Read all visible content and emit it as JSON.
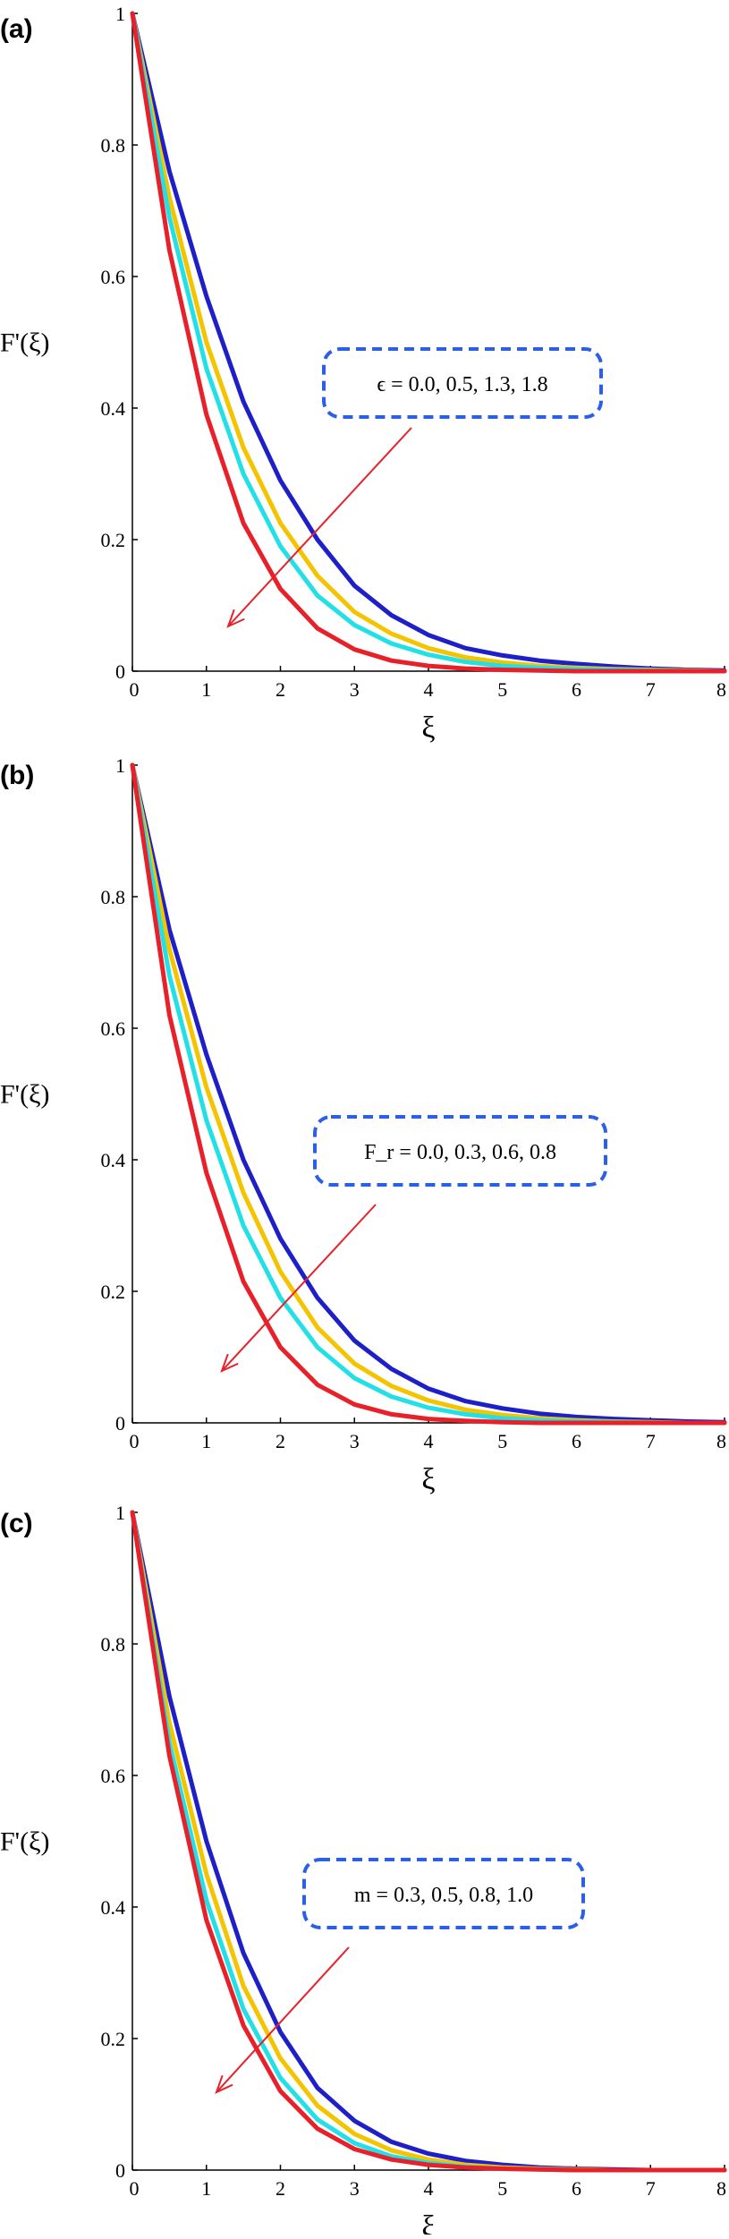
{
  "chart_data": [
    {
      "panel": "(a)",
      "type": "line",
      "xlabel": "ξ",
      "ylabel": "F'(ξ)",
      "xlim": [
        0,
        8
      ],
      "ylim": [
        0,
        1
      ],
      "xticks": [
        "0",
        "1",
        "2",
        "3",
        "4",
        "5",
        "6",
        "7",
        "8"
      ],
      "yticks": [
        "0",
        "0.2",
        "0.4",
        "0.6",
        "0.8",
        "1"
      ],
      "annotation": {
        "text": "ϵ = 0.0, 0.5, 1.3, 1.8",
        "position": "middle-right",
        "arrow": "pointing down-left, from top curve toward bottom curve"
      },
      "series": [
        {
          "color": "#1f1fc8",
          "x": [
            0,
            0.5,
            1,
            1.5,
            2,
            2.5,
            3,
            3.5,
            4,
            4.5,
            5,
            5.5,
            6,
            6.5,
            7,
            7.5,
            8
          ],
          "values": [
            1,
            0.76,
            0.57,
            0.41,
            0.29,
            0.2,
            0.13,
            0.085,
            0.055,
            0.035,
            0.024,
            0.016,
            0.011,
            0.007,
            0.004,
            0.002,
            0.001
          ]
        },
        {
          "color": "#f5c400",
          "x": [
            0,
            0.5,
            1,
            1.5,
            2,
            2.5,
            3,
            3.5,
            4,
            4.5,
            5,
            5.5,
            6,
            6.5,
            7,
            7.5,
            8
          ],
          "values": [
            1,
            0.72,
            0.5,
            0.34,
            0.225,
            0.145,
            0.09,
            0.057,
            0.035,
            0.021,
            0.013,
            0.008,
            0.005,
            0.003,
            0.002,
            0.001,
            0.0
          ]
        },
        {
          "color": "#22e0e6",
          "x": [
            0,
            0.5,
            1,
            1.5,
            2,
            2.5,
            3,
            3.5,
            4,
            4.5,
            5,
            5.5,
            6,
            6.5,
            7,
            7.5,
            8
          ],
          "values": [
            1,
            0.69,
            0.46,
            0.3,
            0.19,
            0.115,
            0.07,
            0.042,
            0.025,
            0.014,
            0.008,
            0.005,
            0.003,
            0.002,
            0.001,
            0.0,
            0.0
          ]
        },
        {
          "color": "#e8202a",
          "x": [
            0,
            0.5,
            1,
            1.5,
            2,
            2.5,
            3,
            3.5,
            4,
            4.5,
            5,
            5.5,
            6,
            6.5,
            7,
            7.5,
            8
          ],
          "values": [
            1,
            0.64,
            0.39,
            0.225,
            0.125,
            0.065,
            0.033,
            0.016,
            0.008,
            0.004,
            0.002,
            0.001,
            0.0,
            0.0,
            0.0,
            0.0,
            0.0
          ]
        }
      ]
    },
    {
      "panel": "(b)",
      "type": "line",
      "xlabel": "ξ",
      "ylabel": "F'(ξ)",
      "xlim": [
        0,
        8
      ],
      "ylim": [
        0,
        1
      ],
      "xticks": [
        "0",
        "1",
        "2",
        "3",
        "4",
        "5",
        "6",
        "7",
        "8"
      ],
      "yticks": [
        "0",
        "0.2",
        "0.4",
        "0.6",
        "0.8",
        "1"
      ],
      "annotation": {
        "text": "F_r = 0.0, 0.3, 0.6, 0.8",
        "position": "middle-right",
        "arrow": "pointing down-left, from top curve toward bottom curve"
      },
      "series": [
        {
          "color": "#1f1fc8",
          "x": [
            0,
            0.5,
            1,
            1.5,
            2,
            2.5,
            3,
            3.5,
            4,
            4.5,
            5,
            5.5,
            6,
            6.5,
            7,
            7.5,
            8
          ],
          "values": [
            1,
            0.75,
            0.56,
            0.4,
            0.28,
            0.19,
            0.125,
            0.082,
            0.052,
            0.033,
            0.022,
            0.014,
            0.009,
            0.006,
            0.004,
            0.002,
            0.001
          ]
        },
        {
          "color": "#f5c400",
          "x": [
            0,
            0.5,
            1,
            1.5,
            2,
            2.5,
            3,
            3.5,
            4,
            4.5,
            5,
            5.5,
            6,
            6.5,
            7,
            7.5,
            8
          ],
          "values": [
            1,
            0.72,
            0.51,
            0.35,
            0.23,
            0.145,
            0.09,
            0.056,
            0.034,
            0.02,
            0.012,
            0.007,
            0.004,
            0.002,
            0.001,
            0.0,
            0.0
          ]
        },
        {
          "color": "#22e0e6",
          "x": [
            0,
            0.5,
            1,
            1.5,
            2,
            2.5,
            3,
            3.5,
            4,
            4.5,
            5,
            5.5,
            6,
            6.5,
            7,
            7.5,
            8
          ],
          "values": [
            1,
            0.68,
            0.46,
            0.3,
            0.19,
            0.115,
            0.068,
            0.04,
            0.023,
            0.013,
            0.007,
            0.004,
            0.002,
            0.001,
            0.0,
            0.0,
            0.0
          ]
        },
        {
          "color": "#e8202a",
          "x": [
            0,
            0.5,
            1,
            1.5,
            2,
            2.5,
            3,
            3.5,
            4,
            4.5,
            5,
            5.5,
            6,
            6.5,
            7,
            7.5,
            8
          ],
          "values": [
            1,
            0.62,
            0.38,
            0.215,
            0.115,
            0.058,
            0.028,
            0.013,
            0.006,
            0.003,
            0.001,
            0.0,
            0.0,
            0.0,
            0.0,
            0.0,
            0.0
          ]
        }
      ]
    },
    {
      "panel": "(c)",
      "type": "line",
      "xlabel": "ξ",
      "ylabel": "F'(ξ)",
      "xlim": [
        0,
        8
      ],
      "ylim": [
        0,
        1
      ],
      "xticks": [
        "0",
        "1",
        "2",
        "3",
        "4",
        "5",
        "6",
        "7",
        "8"
      ],
      "yticks": [
        "0",
        "0.2",
        "0.4",
        "0.6",
        "0.8",
        "1"
      ],
      "annotation": {
        "text": "m = 0.3, 0.5, 0.8, 1.0",
        "position": "middle-right",
        "arrow": "pointing down-left, from top curve toward bottom curve"
      },
      "series": [
        {
          "color": "#1f1fc8",
          "x": [
            0,
            0.5,
            1,
            1.5,
            2,
            2.5,
            3,
            3.5,
            4,
            4.5,
            5,
            5.5,
            6,
            6.5,
            7,
            7.5,
            8
          ],
          "values": [
            1,
            0.72,
            0.5,
            0.33,
            0.21,
            0.125,
            0.075,
            0.043,
            0.025,
            0.014,
            0.008,
            0.004,
            0.002,
            0.001,
            0.0,
            0.0,
            0.0
          ]
        },
        {
          "color": "#f5c400",
          "x": [
            0,
            0.5,
            1,
            1.5,
            2,
            2.5,
            3,
            3.5,
            4,
            4.5,
            5,
            5.5,
            6,
            6.5,
            7,
            7.5,
            8
          ],
          "values": [
            1,
            0.68,
            0.45,
            0.28,
            0.17,
            0.098,
            0.055,
            0.03,
            0.016,
            0.008,
            0.004,
            0.002,
            0.001,
            0.0,
            0.0,
            0.0,
            0.0
          ]
        },
        {
          "color": "#22e0e6",
          "x": [
            0,
            0.5,
            1,
            1.5,
            2,
            2.5,
            3,
            3.5,
            4,
            4.5,
            5,
            5.5,
            6,
            6.5,
            7,
            7.5,
            8
          ],
          "values": [
            1,
            0.65,
            0.41,
            0.245,
            0.14,
            0.077,
            0.041,
            0.021,
            0.011,
            0.005,
            0.002,
            0.001,
            0.0,
            0.0,
            0.0,
            0.0,
            0.0
          ]
        },
        {
          "color": "#e8202a",
          "x": [
            0,
            0.5,
            1,
            1.5,
            2,
            2.5,
            3,
            3.5,
            4,
            4.5,
            5,
            5.5,
            6,
            6.5,
            7,
            7.5,
            8
          ],
          "values": [
            1,
            0.63,
            0.38,
            0.22,
            0.12,
            0.063,
            0.032,
            0.016,
            0.008,
            0.004,
            0.002,
            0.001,
            0.0,
            0.0,
            0.0,
            0.0,
            0.0
          ]
        }
      ]
    }
  ]
}
